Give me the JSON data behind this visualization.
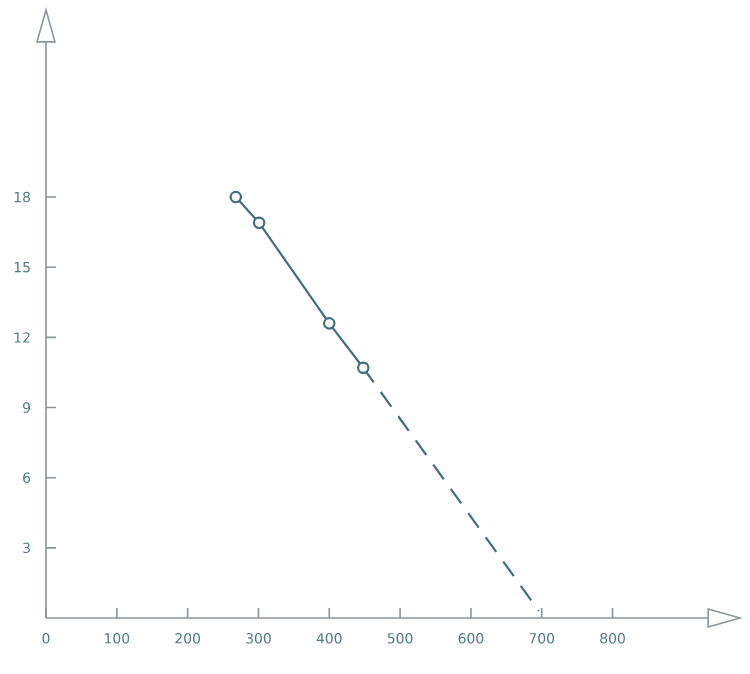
{
  "chart_data": {
    "type": "line",
    "xlim": [
      0,
      980
    ],
    "ylim": [
      0,
      26
    ],
    "xticks": [
      0,
      100,
      200,
      300,
      400,
      500,
      600,
      700,
      800
    ],
    "yticks": [
      3,
      6,
      9,
      12,
      15,
      18
    ],
    "series": [
      {
        "color": "#3f6f7c",
        "marker": "circle",
        "line_style": "solid",
        "x": [
          268,
          301,
          400,
          448
        ],
        "values": [
          18,
          16.9,
          12.6,
          10.7
        ]
      },
      {
        "color": "#3f6f7c",
        "marker": "none",
        "line_style": "dashed",
        "x": [
          448,
          696
        ],
        "values": [
          10.7,
          0.3
        ]
      }
    ]
  }
}
